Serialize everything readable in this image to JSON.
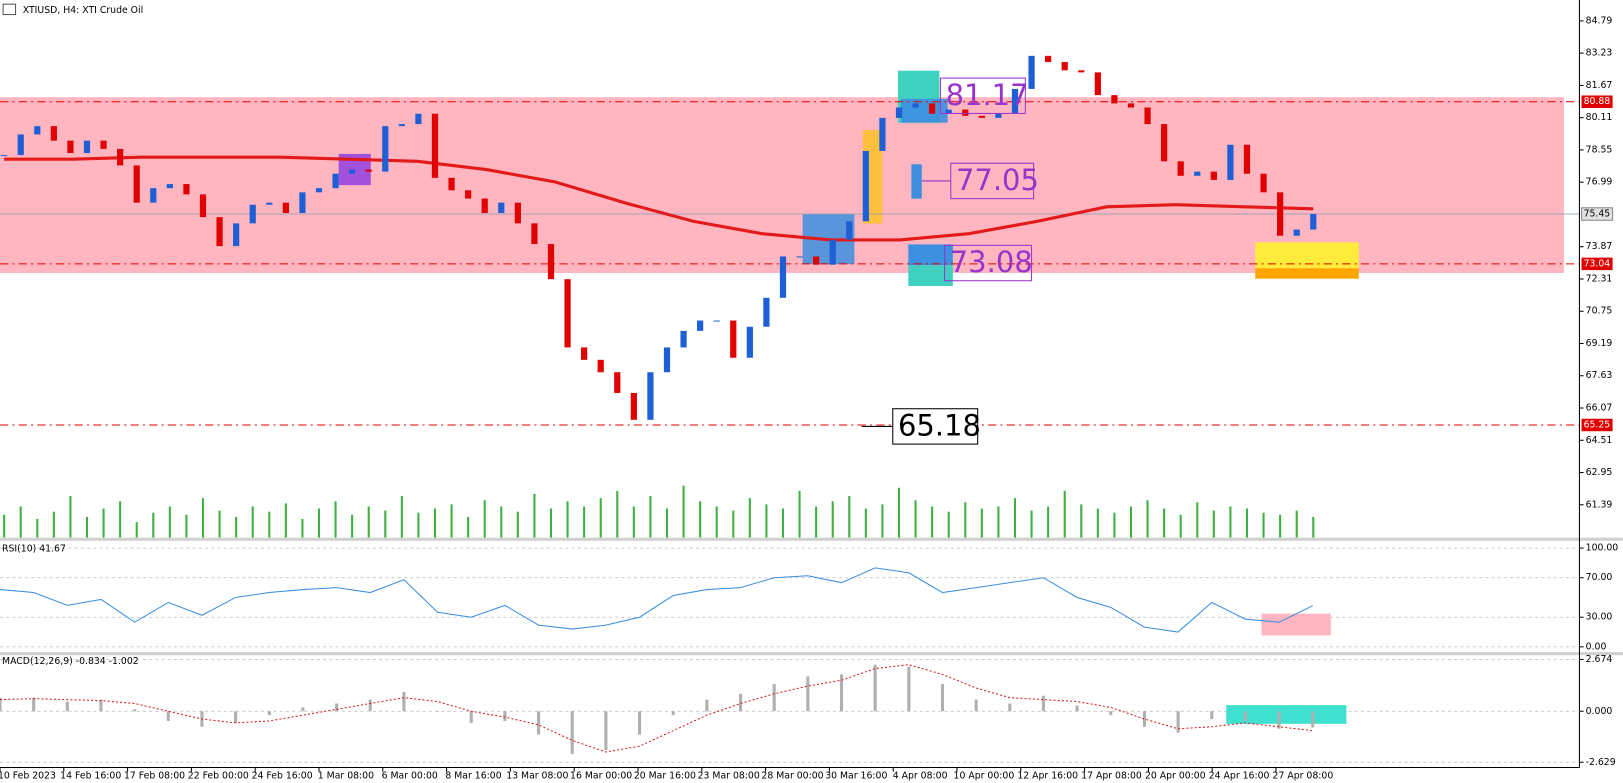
{
  "chart_data": {
    "type": "candlestick",
    "title": "XTIUSD, H4:  XTI Crude Oil",
    "categories": [
      "10 Feb 2023",
      "14 Feb 16:00",
      "17 Feb 08:00",
      "22 Feb 00:00",
      "24 Feb 16:00",
      "1 Mar 08:00",
      "6 Mar 00:00",
      "8 Mar 16:00",
      "13 Mar 08:00",
      "16 Mar 00:00",
      "20 Mar 16:00",
      "23 Mar 08:00",
      "28 Mar 00:00",
      "30 Mar 16:00",
      "4 Apr 08:00",
      "10 Apr 00:00",
      "12 Apr 16:00",
      "17 Apr 08:00",
      "20 Apr 00:00",
      "24 Apr 16:00",
      "27 Apr 08:00"
    ],
    "close": [
      78.3,
      79.3,
      79.7,
      79.0,
      78.4,
      79.0,
      78.6,
      77.8,
      76.0,
      76.7,
      76.9,
      76.4,
      75.3,
      73.9,
      75.0,
      75.9,
      76.0,
      75.5,
      76.5,
      76.7,
      77.4,
      77.6,
      77.5,
      79.7,
      79.8,
      80.3,
      77.2,
      76.6,
      76.2,
      75.5,
      76.0,
      75.0,
      74.0,
      72.3,
      69.0,
      68.4,
      67.8,
      66.8,
      65.5,
      67.8,
      69.0,
      69.8,
      70.3,
      70.3,
      68.5,
      70.0,
      71.4,
      73.4,
      73.4,
      73.0,
      74.2,
      75.1,
      78.5,
      80.1,
      80.6,
      80.8,
      80.3,
      80.5,
      80.2,
      80.1,
      80.3,
      81.5,
      83.1,
      82.8,
      82.4,
      82.3,
      81.2,
      80.8,
      80.6,
      79.8,
      78.0,
      77.3,
      77.5,
      77.1,
      78.8,
      77.4,
      76.5,
      74.4,
      74.7,
      75.45
    ],
    "up_color": "#1f5fd6",
    "down_color": "#e00000",
    "ma": [
      78.1,
      78.1,
      78.2,
      78.2,
      78.2,
      78.1,
      78.0,
      77.6,
      77.0,
      76.0,
      75.1,
      74.5,
      74.2,
      74.2,
      74.5,
      75.1,
      75.8,
      75.9,
      75.8,
      75.7
    ],
    "ma_color": "#e31a1a",
    "volume": [
      22,
      30,
      18,
      25,
      40,
      20,
      28,
      35,
      15,
      24,
      30,
      22,
      38,
      26,
      20,
      30,
      25,
      33,
      18,
      28,
      35,
      22,
      30,
      26,
      40,
      24,
      28,
      32,
      20,
      36,
      30,
      25,
      42,
      28,
      35,
      30,
      38,
      45,
      30,
      40,
      28,
      50,
      35,
      30,
      26,
      38,
      32,
      28,
      45,
      30,
      35,
      40,
      28,
      32,
      48,
      36,
      30,
      25,
      34,
      28,
      30,
      38,
      26,
      30,
      45,
      32,
      28,
      24,
      30,
      36,
      28,
      22,
      34,
      26,
      30,
      28,
      24,
      22,
      26,
      20
    ],
    "volume_color": "#3cb043",
    "ylim": [
      59.8,
      85.8
    ],
    "yticks": [
      84.79,
      83.23,
      81.67,
      80.11,
      78.55,
      76.99,
      73.87,
      72.31,
      70.75,
      69.19,
      67.63,
      66.07,
      64.51,
      62.95,
      61.39
    ],
    "levels": [
      80.88,
      73.04,
      65.25
    ],
    "level_color": "#e00000",
    "last_price": 75.45,
    "zone": [
      72.6,
      81.1
    ],
    "zone_color": "#ffb6c1",
    "annotations": [
      81.17,
      77.05,
      73.08,
      65.18
    ],
    "rsi": {
      "title": "RSI(10) 41.67",
      "values": [
        58,
        55,
        42,
        48,
        25,
        45,
        32,
        50,
        55,
        58,
        60,
        55,
        68,
        35,
        30,
        42,
        22,
        18,
        22,
        30,
        52,
        58,
        60,
        70,
        72,
        65,
        80,
        75,
        55,
        60,
        65,
        70,
        50,
        40,
        20,
        15,
        45,
        28,
        25,
        41.67
      ],
      "color": "#3c8fdc",
      "ylim": [
        -5.3,
        107.4
      ],
      "yticks": [
        {
          "value": 100,
          "label": "100.00"
        },
        {
          "value": 70,
          "label": "70.00"
        },
        {
          "value": 30,
          "label": "30.00"
        },
        {
          "value": 0,
          "label": "0.00"
        }
      ]
    },
    "macd": {
      "title": "MACD(12,26,9) -0.834 -1.002",
      "histogram": [
        0.7,
        0.7,
        0.5,
        0.6,
        0.1,
        -0.5,
        -0.8,
        -0.6,
        -0.2,
        0.2,
        0.4,
        0.6,
        1.0,
        0.0,
        -0.6,
        -0.5,
        -1.2,
        -2.2,
        -2.0,
        -1.2,
        -0.2,
        0.6,
        0.9,
        1.4,
        1.8,
        1.9,
        2.4,
        2.3,
        1.4,
        0.6,
        0.4,
        0.8,
        0.3,
        -0.2,
        -0.8,
        -1.1,
        -0.4,
        -0.5,
        -0.9,
        -0.834
      ],
      "signal": [
        0.6,
        0.65,
        0.6,
        0.55,
        0.4,
        0.0,
        -0.4,
        -0.6,
        -0.5,
        -0.2,
        0.1,
        0.4,
        0.7,
        0.5,
        0.0,
        -0.3,
        -0.7,
        -1.5,
        -2.1,
        -1.8,
        -1.0,
        -0.2,
        0.4,
        0.9,
        1.3,
        1.6,
        2.2,
        2.4,
        1.9,
        1.2,
        0.7,
        0.6,
        0.5,
        0.2,
        -0.4,
        -0.9,
        -0.8,
        -0.6,
        -0.8,
        -1.002
      ],
      "histogram_color": "#b0b0b0",
      "signal_color": "#d02020",
      "ylim": [
        -2.9,
        2.89
      ],
      "yticks": [
        2.674,
        {
          "value": 0,
          "label": "0.000"
        },
        -2.629
      ]
    }
  }
}
